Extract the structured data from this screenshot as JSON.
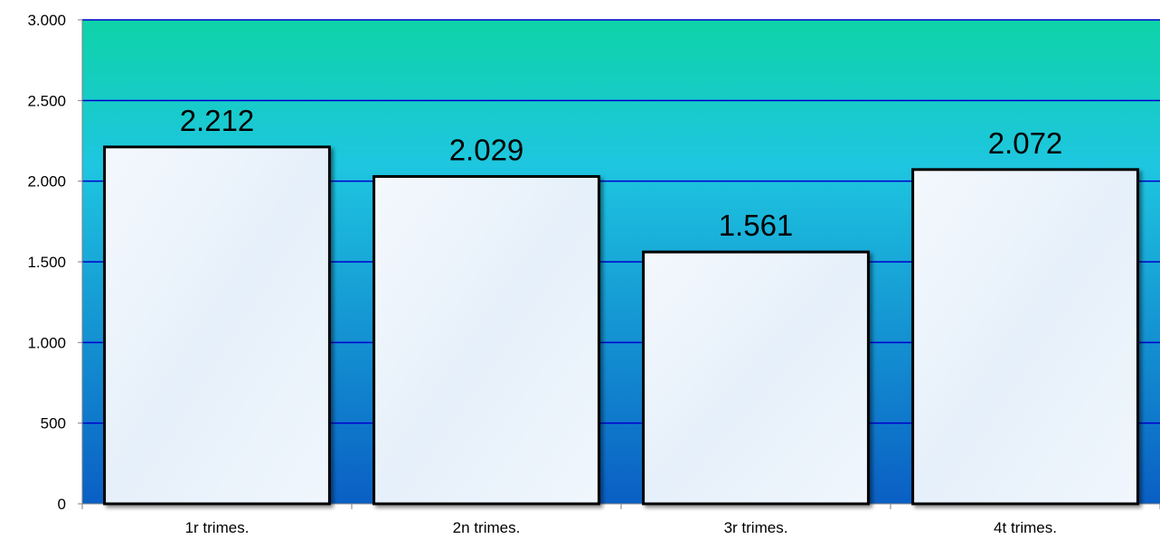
{
  "chart_data": {
    "type": "bar",
    "categories": [
      "1r trimes.",
      "2n trimes.",
      "3r trimes.",
      "4t trimes."
    ],
    "values": [
      2212,
      2029,
      1561,
      2072
    ],
    "value_labels": [
      "2.212",
      "2.029",
      "1.561",
      "2.072"
    ],
    "ylim": [
      0,
      3000
    ],
    "yticks": [
      0,
      500,
      1000,
      1500,
      2000,
      2500,
      3000
    ],
    "ytick_labels": [
      "0",
      "500",
      "1.000",
      "1.500",
      "2.000",
      "2.500",
      "3.000"
    ],
    "grid": true,
    "legend": "none",
    "colors": {
      "plot_top": "#0ed3a8",
      "plot_mid": "#1ec6e0",
      "plot_bottom": "#0a5fc4",
      "gridline": "#0000cc",
      "bar_fill": "#e6f0fa",
      "bar_edge": "#000000"
    }
  }
}
